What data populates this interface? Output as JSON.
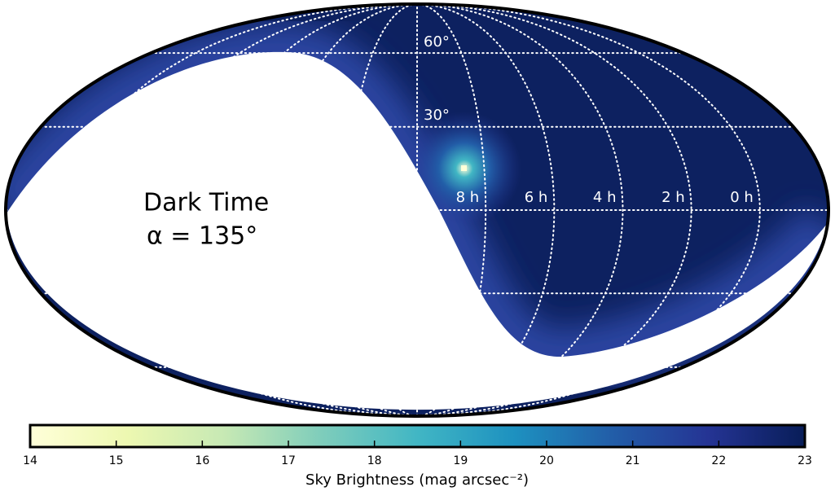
{
  "chart_data": {
    "type": "skymap",
    "annotations": [
      "Dark Time",
      "α = 135°"
    ],
    "lat_labels": [
      "60°",
      "30°"
    ],
    "lon_labels": [
      "8 h",
      "6 h",
      "4 h",
      "2 h",
      "0 h"
    ],
    "colorbar": {
      "label": "Sky Brightness (mag arcsec⁻²)",
      "lim": [
        14,
        23
      ],
      "ticks": [
        14,
        15,
        16,
        17,
        18,
        19,
        20,
        21,
        22,
        23
      ],
      "colors": [
        "#ffffd9",
        "#edf8b1",
        "#c7e9b4",
        "#7fcdbb",
        "#41b6c4",
        "#1d91c0",
        "#225ea8",
        "#253494",
        "#081d58"
      ]
    }
  }
}
